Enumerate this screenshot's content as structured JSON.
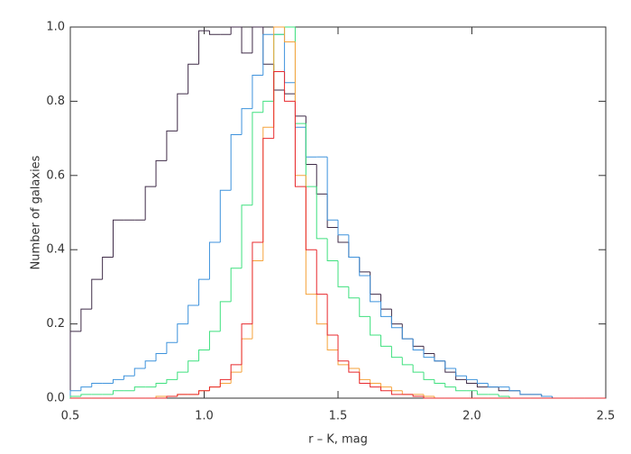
{
  "chart_data": {
    "type": "histogram",
    "xlabel": "r – K, mag",
    "ylabel": "Number of galaxies",
    "bins": [
      0.5,
      0.54,
      0.58,
      0.62,
      0.66,
      0.7,
      0.74,
      0.78,
      0.82,
      0.86,
      0.9,
      0.94,
      0.98,
      1.02,
      1.06,
      1.1,
      1.14,
      1.18,
      1.22,
      1.26,
      1.3,
      1.34,
      1.38,
      1.42,
      1.46,
      1.5,
      1.54,
      1.58,
      1.62,
      1.66,
      1.7,
      1.74,
      1.78,
      1.82,
      1.86,
      1.9,
      1.94,
      1.98,
      2.02,
      2.06,
      2.1,
      2.14,
      2.18,
      2.22,
      2.26,
      2.3,
      2.34,
      2.38,
      2.42,
      2.46,
      2.5
    ],
    "series": [
      {
        "color": "#3f2b47",
        "values": [
          0.18,
          0.24,
          0.32,
          0.38,
          0.48,
          0.48,
          0.48,
          0.57,
          0.64,
          0.72,
          0.82,
          0.9,
          0.99,
          0.98,
          0.98,
          1.0,
          0.93,
          1.0,
          0.9,
          0.83,
          0.82,
          0.76,
          0.63,
          0.55,
          0.46,
          0.42,
          0.38,
          0.34,
          0.28,
          0.24,
          0.2,
          0.16,
          0.14,
          0.12,
          0.1,
          0.07,
          0.05,
          0.04,
          0.03,
          0.03,
          0.02,
          0.02,
          0.01,
          0.01,
          0.005,
          0,
          0,
          0,
          0,
          0
        ]
      },
      {
        "color": "#3d92dc",
        "values": [
          0.02,
          0.03,
          0.04,
          0.04,
          0.05,
          0.06,
          0.08,
          0.1,
          0.12,
          0.15,
          0.2,
          0.25,
          0.32,
          0.42,
          0.56,
          0.71,
          0.78,
          0.87,
          0.98,
          0.98,
          0.85,
          0.73,
          0.65,
          0.65,
          0.48,
          0.44,
          0.38,
          0.33,
          0.26,
          0.22,
          0.19,
          0.16,
          0.13,
          0.11,
          0.1,
          0.08,
          0.06,
          0.05,
          0.04,
          0.03,
          0.03,
          0.02,
          0.01,
          0.01,
          0.005,
          0,
          0,
          0,
          0,
          0
        ]
      },
      {
        "color": "#3ee07e",
        "values": [
          0.005,
          0.01,
          0.01,
          0.01,
          0.02,
          0.02,
          0.03,
          0.03,
          0.04,
          0.05,
          0.07,
          0.1,
          0.13,
          0.18,
          0.26,
          0.35,
          0.52,
          0.77,
          0.8,
          0.98,
          1.0,
          0.74,
          0.57,
          0.43,
          0.37,
          0.3,
          0.27,
          0.22,
          0.17,
          0.14,
          0.11,
          0.09,
          0.07,
          0.05,
          0.04,
          0.03,
          0.02,
          0.02,
          0.01,
          0.01,
          0.005,
          0,
          0,
          0,
          0,
          0,
          0,
          0,
          0,
          0
        ]
      },
      {
        "color": "#f5a23a",
        "values": [
          0,
          0,
          0,
          0,
          0,
          0,
          0,
          0,
          0.005,
          0.005,
          0.01,
          0.01,
          0.02,
          0.03,
          0.04,
          0.07,
          0.16,
          0.37,
          0.73,
          1.0,
          0.96,
          0.6,
          0.28,
          0.2,
          0.13,
          0.09,
          0.08,
          0.05,
          0.04,
          0.03,
          0.02,
          0.01,
          0.01,
          0.005,
          0,
          0,
          0,
          0,
          0,
          0,
          0,
          0,
          0,
          0,
          0,
          0,
          0,
          0,
          0,
          0
        ]
      },
      {
        "color": "#e8282c",
        "values": [
          0,
          0,
          0,
          0,
          0,
          0,
          0,
          0,
          0,
          0.005,
          0.01,
          0.01,
          0.02,
          0.03,
          0.05,
          0.09,
          0.2,
          0.42,
          0.7,
          0.88,
          0.8,
          0.57,
          0.4,
          0.28,
          0.17,
          0.1,
          0.07,
          0.04,
          0.03,
          0.02,
          0.01,
          0.01,
          0.005,
          0,
          0,
          0,
          0,
          0,
          0,
          0,
          0,
          0,
          0,
          0,
          0,
          0,
          0,
          0,
          0,
          0
        ]
      }
    ],
    "xlim": [
      0.5,
      2.5
    ],
    "ylim": [
      0,
      1.0
    ],
    "xticks": [
      0.5,
      {
        "value": 1.0,
        "label": "1.0"
      },
      1.5,
      {
        "value": 2.0,
        "label": "2.0"
      },
      {
        "value": 2.5,
        "label": "2.5"
      }
    ],
    "yticks": [
      {
        "value": 0.0,
        "label": "0.0"
      },
      0.2,
      0.4,
      0.6,
      0.8,
      {
        "value": 1.0,
        "label": "1.0"
      }
    ],
    "grid": false
  }
}
